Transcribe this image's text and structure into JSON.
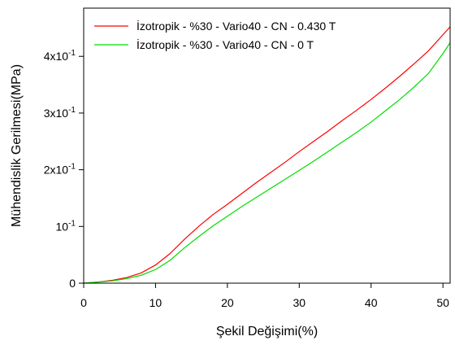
{
  "chart_data": {
    "type": "line",
    "title": "",
    "xlabel": "Şekil Değişimi(%)",
    "ylabel": "Mühendislik Gerilmesi(MPa)",
    "xlim": [
      0,
      51
    ],
    "ylim": [
      0,
      0.485
    ],
    "grid": false,
    "legend_position": "top-left",
    "x_ticks": [
      {
        "value": 0,
        "label": "0"
      },
      {
        "value": 10,
        "label": "10"
      },
      {
        "value": 20,
        "label": "20"
      },
      {
        "value": 30,
        "label": "30"
      },
      {
        "value": 40,
        "label": "40"
      },
      {
        "value": 50,
        "label": "50"
      }
    ],
    "y_ticks": [
      {
        "value": 0,
        "base": "0",
        "exp": ""
      },
      {
        "value": 0.1,
        "base": "10",
        "exp": "-1"
      },
      {
        "value": 0.2,
        "base": "2x10",
        "exp": "-1"
      },
      {
        "value": 0.3,
        "base": "3x10",
        "exp": "-1"
      },
      {
        "value": 0.4,
        "base": "4x10",
        "exp": "-1"
      }
    ],
    "series": [
      {
        "name": "İzotropik - %30 - Vario40 - CN - 0.430 T",
        "color": "#ff0000",
        "x": [
          0,
          2,
          4,
          6,
          8,
          10,
          12,
          14,
          16,
          18,
          20,
          22,
          24,
          26,
          28,
          30,
          32,
          34,
          36,
          38,
          40,
          42,
          44,
          46,
          48,
          50,
          51
        ],
        "y": [
          0.0,
          0.002,
          0.005,
          0.01,
          0.018,
          0.032,
          0.052,
          0.077,
          0.1,
          0.121,
          0.139,
          0.158,
          0.177,
          0.195,
          0.213,
          0.232,
          0.25,
          0.268,
          0.287,
          0.305,
          0.324,
          0.344,
          0.365,
          0.387,
          0.41,
          0.438,
          0.452
        ]
      },
      {
        "name": "İzotropik - %30 - Vario40 - CN - 0 T",
        "color": "#00dd00",
        "x": [
          0,
          2,
          4,
          6,
          8,
          10,
          12,
          14,
          16,
          18,
          20,
          22,
          24,
          26,
          28,
          30,
          32,
          34,
          36,
          38,
          40,
          42,
          44,
          46,
          48,
          50,
          51
        ],
        "y": [
          0.0,
          0.002,
          0.004,
          0.008,
          0.014,
          0.024,
          0.04,
          0.062,
          0.082,
          0.101,
          0.118,
          0.135,
          0.151,
          0.167,
          0.183,
          0.199,
          0.215,
          0.232,
          0.249,
          0.266,
          0.284,
          0.304,
          0.324,
          0.346,
          0.37,
          0.405,
          0.424
        ]
      }
    ]
  }
}
